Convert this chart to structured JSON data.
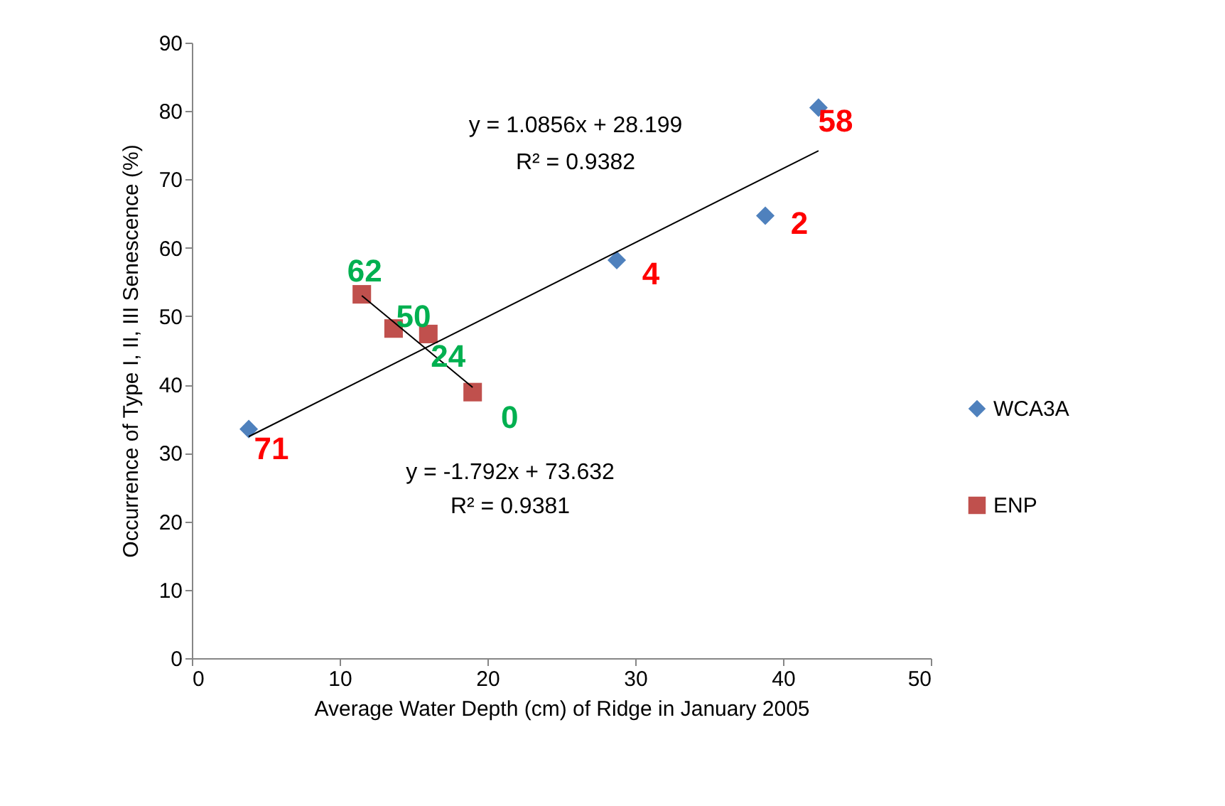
{
  "chart_data": {
    "type": "scatter",
    "xlabel": "Average Water Depth (cm) of Ridge in January 2005",
    "ylabel": "Occurrence of Type I, II, III Senescence (%)",
    "xlim": [
      0,
      50
    ],
    "xticks": [
      0,
      10,
      20,
      30,
      40,
      50
    ],
    "ylim": [
      0,
      90
    ],
    "yticks": [
      0,
      10,
      20,
      30,
      40,
      50,
      60,
      70,
      80,
      90
    ],
    "legend": "right",
    "grid": false,
    "series": [
      {
        "name": "WCA3A",
        "color": "#4f81bd",
        "marker": "diamond",
        "x": [
          3.85,
          28.75,
          38.8,
          42.4
        ],
        "values": [
          33.5,
          58.2,
          64.7,
          80.5
        ]
      },
      {
        "name": "ENP",
        "color": "#c0504d",
        "marker": "square",
        "x": [
          11.5,
          13.65,
          16.0,
          19.0
        ],
        "values": [
          53.2,
          48.2,
          47.4,
          38.9
        ]
      },
      {
        "type": "line",
        "color": "#000000",
        "x": [
          3.85,
          42.4
        ],
        "values": [
          32.4,
          74.2
        ]
      },
      {
        "type": "line",
        "color": "#000000",
        "x": [
          11.5,
          19.0
        ],
        "values": [
          53.0,
          39.6
        ]
      }
    ],
    "annotations": [
      {
        "text": "71",
        "x": 3.85,
        "y": 33.5
      },
      {
        "text": "4",
        "x": 28.75,
        "y": 58.2
      },
      {
        "text": "2",
        "x": 38.8,
        "y": 64.7
      },
      {
        "text": "58",
        "x": 42.4,
        "y": 80.5
      },
      {
        "text": "62",
        "x": 11.5,
        "y": 53.2
      },
      {
        "text": "50",
        "x": 13.65,
        "y": 48.2
      },
      {
        "text": "24",
        "x": 16.0,
        "y": 47.4
      },
      {
        "text": "0",
        "x": 19.0,
        "y": 38.9
      },
      "y = 1.0856x + 28.199",
      "R² = 0.9382",
      "y = -1.792x + 73.632",
      "R² = 0.9381"
    ]
  }
}
